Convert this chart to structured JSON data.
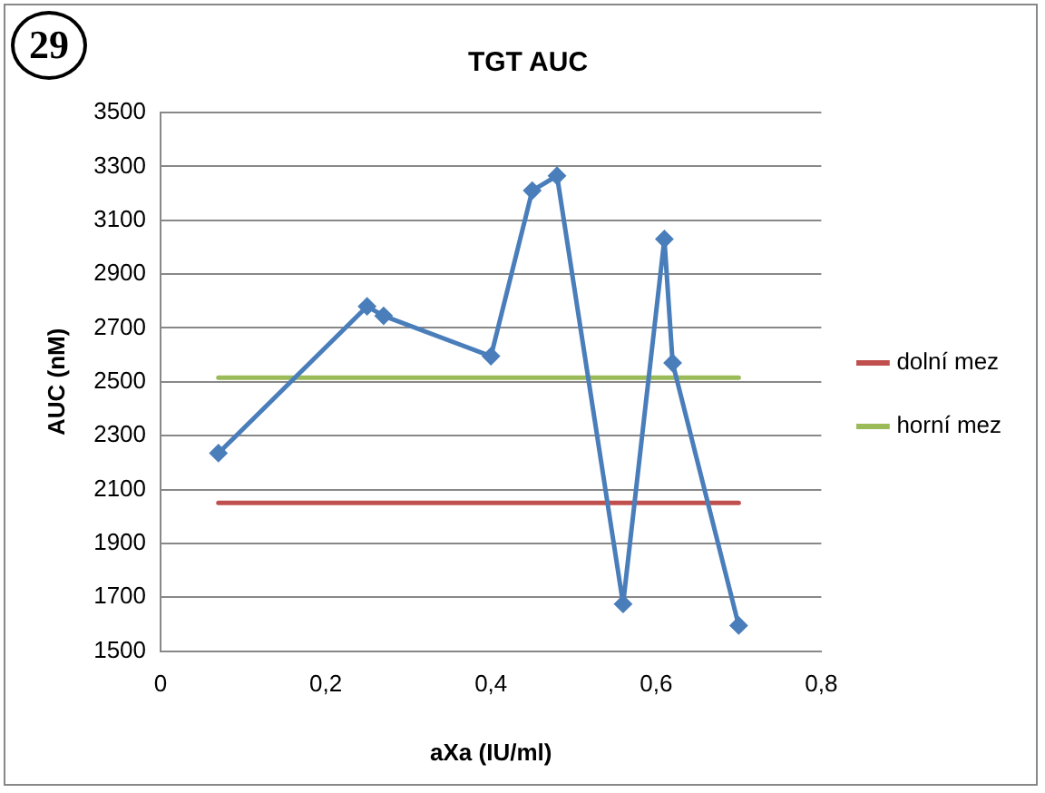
{
  "chart_data": {
    "type": "line",
    "title": "TGT AUC",
    "xlabel": "aXa (IU/ml)",
    "ylabel": "AUC (nM)",
    "annotations": [
      "29"
    ],
    "xlim": [
      0,
      0.8
    ],
    "xticks": [
      0,
      {
        "value": 0.2,
        "label": "0,2"
      },
      {
        "value": 0.4,
        "label": "0,4"
      },
      {
        "value": 0.6,
        "label": "0,6"
      },
      {
        "value": 0.8,
        "label": "0,8"
      }
    ],
    "ylim": [
      1500,
      3500
    ],
    "yticks": [
      1500,
      1700,
      1900,
      2100,
      2300,
      2500,
      2700,
      2900,
      3100,
      3300,
      3500
    ],
    "grid": "y",
    "legend": "right",
    "marker": "diamond",
    "line_style": "solid",
    "series": [
      {
        "color": "#4a7ebb",
        "x": [
          0.07,
          0.25,
          0.27,
          0.4,
          0.45,
          0.48,
          0.56,
          0.61,
          0.62,
          0.7
        ],
        "values": [
          2235,
          2780,
          2745,
          2595,
          3210,
          3265,
          1675,
          3030,
          2570,
          1595
        ]
      },
      {
        "name": "dolní mez",
        "color": "#c0504d",
        "marker": "none",
        "x": [
          0.07,
          0.7
        ],
        "values": [
          2050,
          2050
        ]
      },
      {
        "name": "horní mez",
        "color": "#9bbb59",
        "marker": "none",
        "x": [
          0.07,
          0.7
        ],
        "values": [
          2515,
          2515
        ]
      }
    ]
  }
}
